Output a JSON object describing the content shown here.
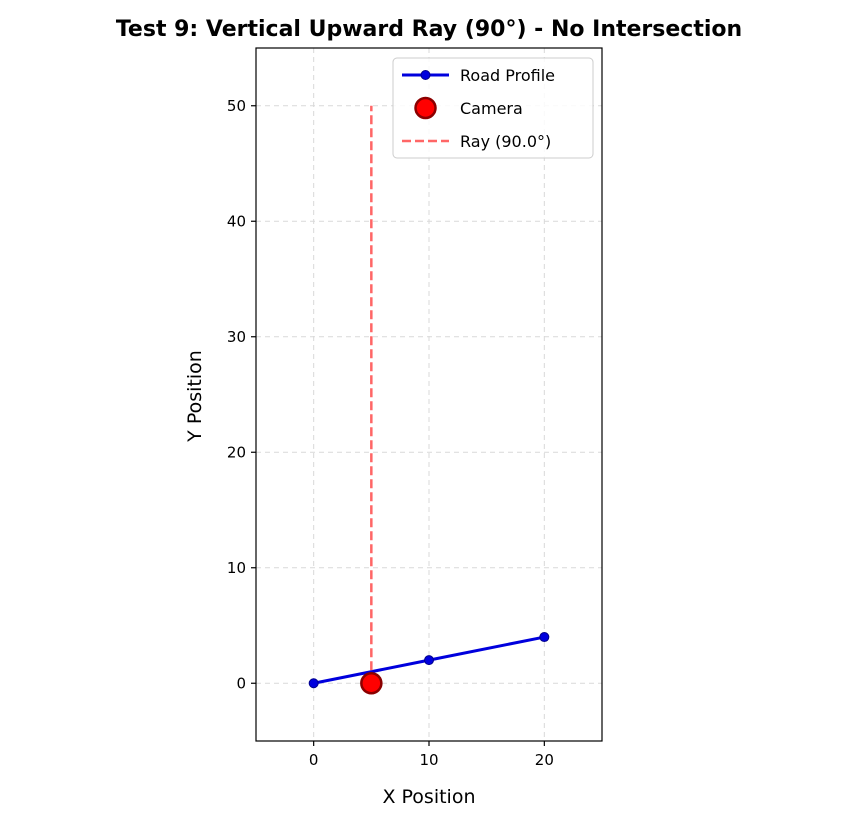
{
  "chart_data": {
    "type": "line",
    "title": "Test 9: Vertical Upward Ray (90°) - No Intersection",
    "xlabel": "X Position",
    "ylabel": "Y Position",
    "xlim": [
      -5,
      25
    ],
    "ylim": [
      -5,
      55
    ],
    "xticks": [
      0,
      10,
      20
    ],
    "yticks": [
      0,
      10,
      20,
      30,
      40,
      50
    ],
    "grid": true,
    "legend_position": "top-right",
    "series": [
      {
        "name": "Road Profile",
        "kind": "line-with-markers",
        "color": "#0000dd",
        "x": [
          0,
          10,
          20
        ],
        "y": [
          0,
          2,
          4
        ]
      },
      {
        "name": "Camera",
        "kind": "marker",
        "color": "#ff0000",
        "edge_color": "#8b0000",
        "x": [
          5
        ],
        "y": [
          0
        ]
      },
      {
        "name": "Ray (90.0°)",
        "kind": "dashed-line",
        "color": "#ff6666",
        "x": [
          5,
          5
        ],
        "y": [
          0,
          50
        ]
      }
    ]
  }
}
